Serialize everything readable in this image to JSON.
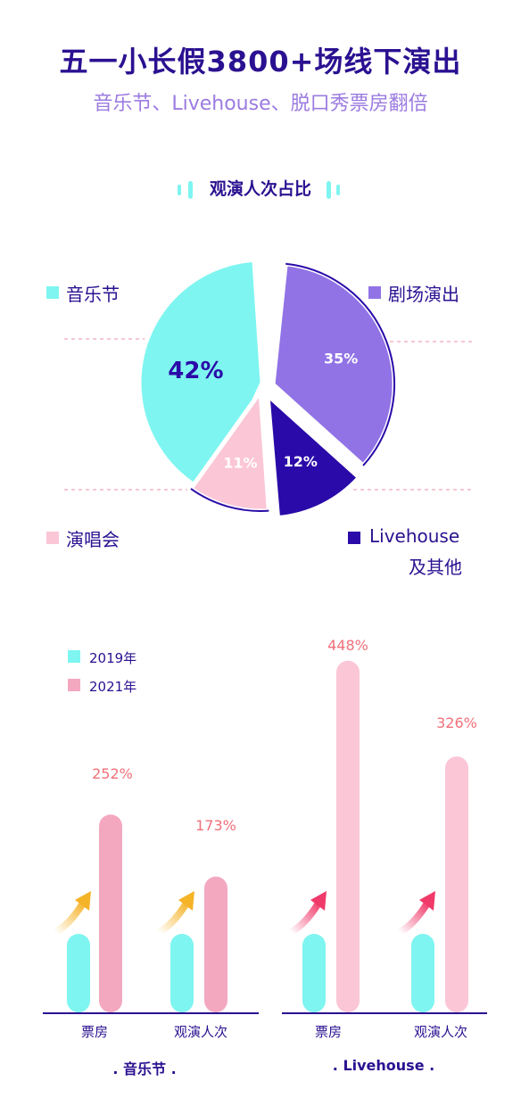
{
  "header": {
    "title": "五一小长假3800+场线下演出",
    "subtitle": "音乐节、Livehouse、脱口秀票房翻倍"
  },
  "colors": {
    "cyan": "#7ef5f0",
    "purple": "#9173e6",
    "navy": "#2a0aa8",
    "pink": "#fbc6d6",
    "pink_dark": "#f3a8c0",
    "arrow_yellow": "#f5b328",
    "arrow_red": "#f03a6a",
    "text_dark": "#2b1191"
  },
  "chart_data": [
    {
      "type": "pie",
      "title": "观演人次占比",
      "slices": [
        {
          "label": "音乐节",
          "value": 42,
          "value_label": "42%"
        },
        {
          "label": "剧场演出",
          "value": 35,
          "value_label": "35%"
        },
        {
          "label": "Livehouse",
          "label_line2": "及其他",
          "value": 12,
          "value_label": "12%"
        },
        {
          "label": "演唱会",
          "value": 11,
          "value_label": "11%"
        }
      ]
    },
    {
      "type": "bar",
      "legend": [
        "2019年",
        "2021年"
      ],
      "groups": [
        {
          "name": ". 音乐节 .",
          "categories": [
            {
              "label": "票房",
              "v2019": 100,
              "v2021": 252,
              "growth_label": "252%"
            },
            {
              "label": "观演人次",
              "v2019": 100,
              "v2021": 173,
              "growth_label": "173%"
            }
          ]
        },
        {
          "name": ". Livehouse .",
          "categories": [
            {
              "label": "票房",
              "v2019": 100,
              "v2021": 448,
              "growth_label": "448%"
            },
            {
              "label": "观演人次",
              "v2019": 100,
              "v2021": 326,
              "growth_label": "326%"
            }
          ]
        }
      ]
    }
  ]
}
